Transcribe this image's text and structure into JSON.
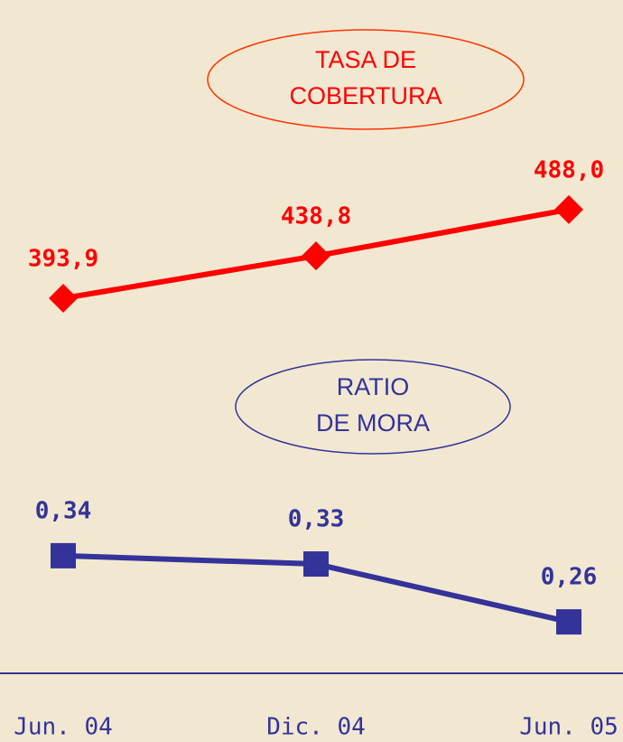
{
  "chart_data": [
    {
      "type": "line",
      "title": [
        "TASA DE",
        "COBERTURA"
      ],
      "color": "#ff0000",
      "marker": "diamond",
      "values": [
        393.9,
        438.8,
        488.0
      ],
      "value_labels": [
        "393,9",
        "438,8",
        "488,0"
      ],
      "ylim": [
        300,
        600
      ]
    },
    {
      "type": "line",
      "title": [
        "RATIO",
        "DE MORA"
      ],
      "color": "#333399",
      "marker": "square",
      "categories": [
        "Jun. 04",
        "Dic. 04",
        "Jun. 05"
      ],
      "values": [
        0.34,
        0.33,
        0.26
      ],
      "value_labels": [
        "0,34",
        "0,33",
        "0,26"
      ],
      "ylim": [
        0.2,
        0.4
      ]
    }
  ]
}
